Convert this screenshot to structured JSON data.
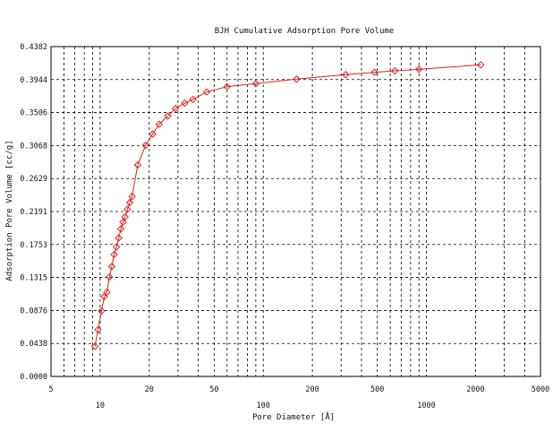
{
  "chart_data": {
    "type": "line",
    "title": "BJH Cumulative Adsorption Pore Volume",
    "xlabel": "Pore Diameter [Å]",
    "ylabel": "Adsorption Pore Volume [cc/g]",
    "x_scale": "log",
    "xlim": [
      5,
      5000
    ],
    "ylim": [
      0,
      0.4382
    ],
    "x_ticks": [
      {
        "value": 5,
        "label": "5",
        "row": "upper"
      },
      {
        "value": 10,
        "label": "10",
        "row": "lower"
      },
      {
        "value": 20,
        "label": "20",
        "row": "upper"
      },
      {
        "value": 50,
        "label": "50",
        "row": "upper"
      },
      {
        "value": 100,
        "label": "100",
        "row": "lower"
      },
      {
        "value": 200,
        "label": "200",
        "row": "upper"
      },
      {
        "value": 500,
        "label": "500",
        "row": "upper"
      },
      {
        "value": 1000,
        "label": "1000",
        "row": "lower"
      },
      {
        "value": 2000,
        "label": "2000",
        "row": "upper"
      },
      {
        "value": 5000,
        "label": "5000",
        "row": "upper"
      }
    ],
    "y_ticks": [
      "0.0000",
      "0.0438",
      "0.0876",
      "0.1315",
      "0.1753",
      "0.2191",
      "0.2629",
      "0.3068",
      "0.3506",
      "0.3944",
      "0.4382"
    ],
    "grid": true,
    "legend": "none",
    "series_color": "#e02020",
    "marker": "diamond",
    "series": [
      {
        "x": [
          9.3,
          9.7,
          10.2,
          10.6,
          11.0,
          11.4,
          11.8,
          12.2,
          12.6,
          13.0,
          13.4,
          13.8,
          14.2,
          14.7,
          15.2,
          15.7,
          17.0,
          19.0,
          21.0,
          23.0,
          26.0,
          29.0,
          33.0,
          37.0,
          45.0,
          60.0,
          90.0,
          160.0,
          320.0,
          480.0,
          640.0,
          900.0,
          2150.0
        ],
        "y": [
          0.04,
          0.062,
          0.087,
          0.106,
          0.112,
          0.132,
          0.146,
          0.162,
          0.172,
          0.184,
          0.196,
          0.205,
          0.212,
          0.222,
          0.231,
          0.239,
          0.281,
          0.307,
          0.322,
          0.335,
          0.346,
          0.356,
          0.363,
          0.368,
          0.378,
          0.385,
          0.389,
          0.395,
          0.401,
          0.404,
          0.406,
          0.408,
          0.414
        ]
      }
    ]
  }
}
